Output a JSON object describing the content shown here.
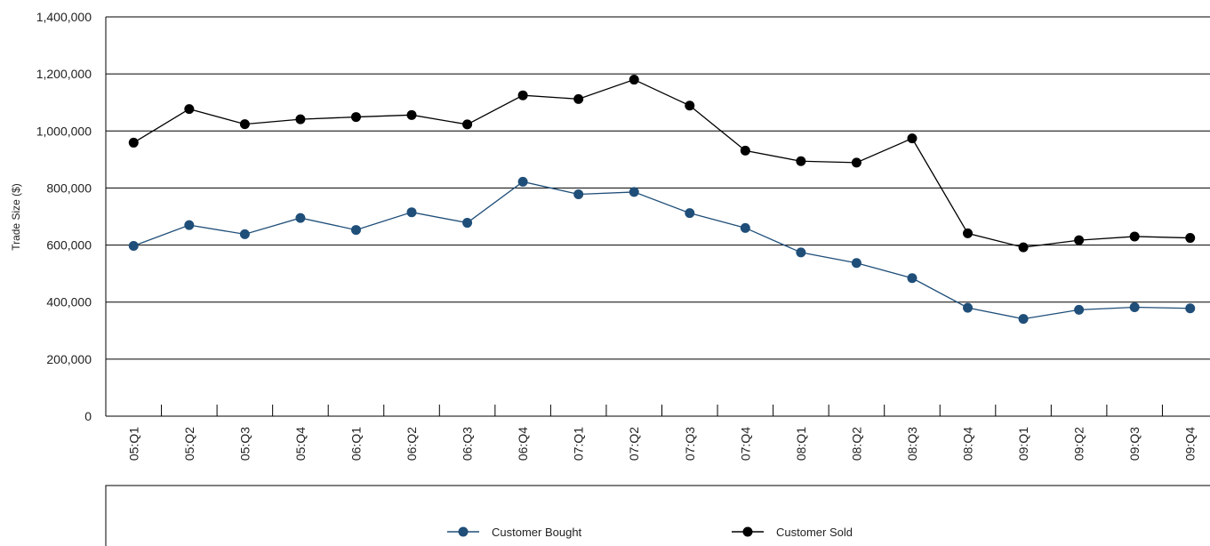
{
  "chart_data": {
    "type": "line",
    "title": "",
    "xlabel": "",
    "ylabel": "Trade Size ($)",
    "categories": [
      "05:Q1",
      "05:Q2",
      "05:Q3",
      "05:Q4",
      "06:Q1",
      "06:Q2",
      "06:Q3",
      "06:Q4",
      "07:Q1",
      "07:Q2",
      "07:Q3",
      "07:Q4",
      "08:Q1",
      "08:Q2",
      "08:Q3",
      "08:Q4",
      "09:Q1",
      "09:Q2",
      "09:Q3",
      "09:Q4"
    ],
    "ylim": [
      0,
      1400000
    ],
    "yticks": [
      0,
      200000,
      400000,
      600000,
      800000,
      1000000,
      1200000,
      1400000
    ],
    "ytick_labels": [
      "0",
      "200,000",
      "400,000",
      "600,000",
      "800,000",
      "1,000,000",
      "1,200,000",
      "1,400,000"
    ],
    "grid": "horizontal",
    "legend_position": "bottom",
    "series": [
      {
        "name": "Customer Bought",
        "color": "#1f4e79",
        "values": [
          597000,
          670000,
          638000,
          695000,
          653000,
          715000,
          678000,
          822000,
          778000,
          786000,
          712000,
          660000,
          574000,
          537000,
          484000,
          380000,
          341000,
          373000,
          382000,
          378000
        ]
      },
      {
        "name": "Customer Sold",
        "color": "#000000",
        "values": [
          959000,
          1077000,
          1024000,
          1041000,
          1049000,
          1056000,
          1023000,
          1125000,
          1112000,
          1180000,
          1089000,
          931000,
          894000,
          889000,
          974000,
          641000,
          592000,
          617000,
          630000,
          625000
        ]
      }
    ]
  }
}
